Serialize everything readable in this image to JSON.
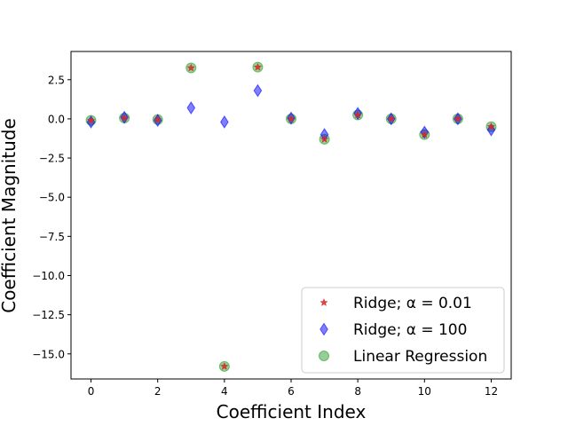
{
  "chart_data": {
    "type": "scatter",
    "xlabel": "Coefficient Index",
    "ylabel": "Coefficient Magnitude",
    "xlim": [
      -0.6,
      12.6
    ],
    "ylim": [
      -16.6,
      4.3
    ],
    "xticks": [
      "0",
      "2",
      "4",
      "6",
      "8",
      "10",
      "12"
    ],
    "yticks": [
      "2.5",
      "0.0",
      "−2.5",
      "−5.0",
      "−7.5",
      "−10.0",
      "−12.5",
      "−15.0"
    ],
    "ytick_values": [
      2.5,
      0.0,
      -2.5,
      -5.0,
      -7.5,
      -10.0,
      -12.5,
      -15.0
    ],
    "xtick_values": [
      0,
      2,
      4,
      6,
      8,
      10,
      12
    ],
    "grid": false,
    "legend_position": "lower-right",
    "series": [
      {
        "name": "Ridge; α = 0.01",
        "marker": "star",
        "color": "#d62728",
        "x": [
          0,
          1,
          2,
          3,
          4,
          5,
          6,
          7,
          8,
          9,
          10,
          11,
          12
        ],
        "y": [
          -0.1,
          0.05,
          -0.05,
          3.25,
          -15.8,
          3.3,
          0.0,
          -1.3,
          0.25,
          0.0,
          -1.0,
          0.0,
          -0.5
        ]
      },
      {
        "name": "Ridge; α = 100",
        "marker": "diamond",
        "color": "#0000ff",
        "x": [
          0,
          1,
          2,
          3,
          4,
          5,
          6,
          7,
          8,
          9,
          10,
          11,
          12
        ],
        "y": [
          -0.2,
          0.1,
          -0.1,
          0.7,
          -0.2,
          1.8,
          0.05,
          -1.0,
          0.35,
          0.0,
          -0.85,
          0.0,
          -0.7
        ]
      },
      {
        "name": "Linear Regression",
        "marker": "circle",
        "color": "#2ca02c",
        "x": [
          0,
          1,
          2,
          3,
          4,
          5,
          6,
          7,
          8,
          9,
          10,
          11,
          12
        ],
        "y": [
          -0.1,
          0.05,
          -0.05,
          3.25,
          -15.8,
          3.3,
          0.0,
          -1.3,
          0.25,
          0.0,
          -1.0,
          0.0,
          -0.5
        ]
      }
    ]
  }
}
